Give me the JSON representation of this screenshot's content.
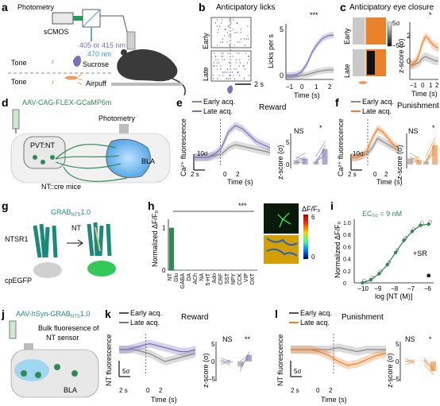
{
  "colors": {
    "purple": "#7b6fb8",
    "orange": "#e9822b",
    "green": "#2e8b57",
    "teal": "#1a8a7a",
    "grey": "#8a8a8a",
    "dark": "#222222"
  },
  "panel_a": {
    "label": "a",
    "photometry": "Photometry",
    "camera": "sCMOS",
    "wavelengths": "405 or 415 nm",
    "wavelength2": "470 nm",
    "tone1": "Tone",
    "outcome1": "Sucrose",
    "tone2": "Tone",
    "outcome2": "Airpuff"
  },
  "panel_b": {
    "label": "b",
    "title": "Anticipatory licks",
    "row1": "Early",
    "row2": "Late",
    "scale": "2 s",
    "ylabel": "Licks per s",
    "xlabel": "Time (s)",
    "yticks": [
      "0",
      "5"
    ],
    "xticks": [
      "−1",
      "0",
      "1",
      "2"
    ],
    "sig": "***"
  },
  "panel_c": {
    "label": "c",
    "title": "Anticipatory eye closure",
    "row1": "Early",
    "row2": "Late",
    "cbar_top": "5σ",
    "cbar_bottom": "−5σ",
    "ylabel": "z-score (σ)",
    "xlabel": "Time (s)",
    "yticks": [
      "0",
      "2"
    ],
    "xticks": [
      "−1",
      "0",
      "1",
      "2"
    ],
    "sig": "*"
  },
  "panel_d": {
    "label": "d",
    "virus": "AAV-CAG-FLEX-GCaMP6m",
    "photometry": "Photometry",
    "region1": "PVT:NT",
    "region2": "BLA",
    "mouse": "NT::cre mice"
  },
  "panel_e": {
    "label": "e",
    "title": "Reward",
    "legend": [
      "Early acq.",
      "Late acq."
    ],
    "ylabel": "Ca²⁺ fluorescence",
    "scale_y": "10σ",
    "scale_x": "2 s",
    "xlabel": "Time (s)",
    "xticks": [
      "0",
      "2"
    ],
    "ylabel2": "z-score (σ)",
    "yticks2": [
      "0",
      "5"
    ],
    "sig1": "NS",
    "sig2": "*"
  },
  "panel_f": {
    "label": "f",
    "title": "Punishment",
    "legend": [
      "Early acq.",
      "Late acq."
    ],
    "ylabel": "Ca²⁺ fluorescence",
    "scale_y": "10σ",
    "scale_x": "2 s",
    "xlabel": "Time (s)",
    "xticks": [
      "0",
      "2"
    ],
    "ylabel2": "z-score (σ)",
    "yticks2": [
      "0",
      "5"
    ],
    "sig1": "NS",
    "sig2": "*"
  },
  "panel_g": {
    "label": "g",
    "sensor": "GRAB",
    "sensor_sub": "NTS",
    "sensor_ver": "1.0",
    "receptor": "NTSR1",
    "ligand": "NT",
    "fluor": "cpEGFP"
  },
  "panel_h": {
    "label": "h",
    "ylabel": "Normalized ΔF/F₀",
    "yticks": [
      "0",
      "1"
    ],
    "sig": "***",
    "cbar_label": "ΔF/F₀",
    "cbar_ticks": [
      "6",
      "0"
    ]
  },
  "chart_h": {
    "type": "bar",
    "categories": [
      "NT",
      "Glu",
      "GABA",
      "DA",
      "ACh",
      "NA",
      "5-HT",
      "Ado",
      "CRF",
      "SST",
      "NPY",
      "CCK",
      "VIP",
      "OXT"
    ],
    "values": [
      1.0,
      0.01,
      0.01,
      0.01,
      0.01,
      0.01,
      0.01,
      0.01,
      0.01,
      0.01,
      0.01,
      0.01,
      0.01,
      0.01
    ],
    "ylabel": "Normalized ΔF/F₀",
    "ylim": [
      0,
      1.2
    ]
  },
  "panel_i": {
    "label": "i",
    "ylabel": "Normalized ΔF/F₀",
    "xlabel": "log [NT (M)]",
    "ec50": "EC₅₀ = 9 nM",
    "sr_label": "+SR",
    "yticks": [
      "0",
      "0.2",
      "0.4",
      "0.6",
      "0.8",
      "1.0"
    ],
    "xticks": [
      "−10",
      "−9",
      "−8",
      "−7",
      "−6"
    ]
  },
  "chart_i": {
    "type": "line",
    "x": [
      -10,
      -9.5,
      -9,
      -8.5,
      -8,
      -7.5,
      -7,
      -6.5,
      -6
    ],
    "values": [
      0.0,
      0.05,
      0.15,
      0.3,
      0.5,
      0.7,
      0.85,
      0.95,
      0.97
    ],
    "sr_point": {
      "x": -6,
      "y": 0.12
    },
    "xlim": [
      -10.5,
      -5.7
    ],
    "ylim": [
      0,
      1.05
    ]
  },
  "panel_j": {
    "label": "j",
    "virus_prefix": "AAV-hSyn-GRAB",
    "virus_sub": "NTS",
    "virus_ver": "1.0",
    "note1": "Bulk fluoresence of",
    "note2": "NT sensor",
    "region": "BLA"
  },
  "panel_k": {
    "label": "k",
    "title": "Reward",
    "legend": [
      "Early acq.",
      "Late acq."
    ],
    "ylabel": "NT fluorescence",
    "scale_y": "5σ",
    "scale_x": "2 s",
    "xlabel": "Time (s)",
    "xticks": [
      "0",
      "2"
    ],
    "ylabel2": "z-score (σ)",
    "yticks2": [
      "−5",
      "0",
      "5"
    ],
    "sig1": "NS",
    "sig2": "**"
  },
  "panel_l": {
    "label": "l",
    "title": "Punishment",
    "legend": [
      "Early acq.",
      "Late acq."
    ],
    "ylabel": "NT fluorescence",
    "scale_y": "5σ",
    "scale_x": "2 s",
    "xlabel": "Time (s)",
    "xticks": [
      "0",
      "2"
    ],
    "ylabel2": "z-score (σ)",
    "yticks2": [
      "−5",
      "0",
      "5"
    ],
    "sig1": "NS",
    "sig2": "*"
  }
}
